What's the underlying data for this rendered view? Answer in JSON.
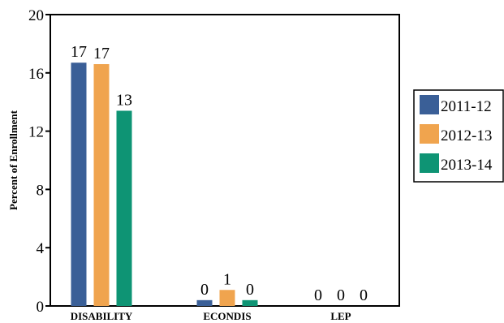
{
  "chart_data": {
    "type": "bar",
    "title": "",
    "xlabel": "",
    "ylabel": "Percent of Enrollment",
    "ylim": [
      0,
      20
    ],
    "yticks": [
      0,
      4,
      8,
      12,
      16,
      20
    ],
    "categories": [
      "DISABILITY",
      "ECONDIS",
      "LEP"
    ],
    "series": [
      {
        "name": "2011-12",
        "color": "#3a5f97",
        "values": [
          16.7,
          0.4,
          0.0
        ],
        "labels": [
          "17",
          "0",
          "0"
        ]
      },
      {
        "name": "2012-13",
        "color": "#f0a44e",
        "values": [
          16.6,
          1.1,
          0.0
        ],
        "labels": [
          "17",
          "1",
          "0"
        ]
      },
      {
        "name": "2013-14",
        "color": "#0e9474",
        "values": [
          13.4,
          0.4,
          0.0
        ],
        "labels": [
          "13",
          "0",
          "0"
        ]
      }
    ],
    "legend": "right",
    "grid": false
  }
}
